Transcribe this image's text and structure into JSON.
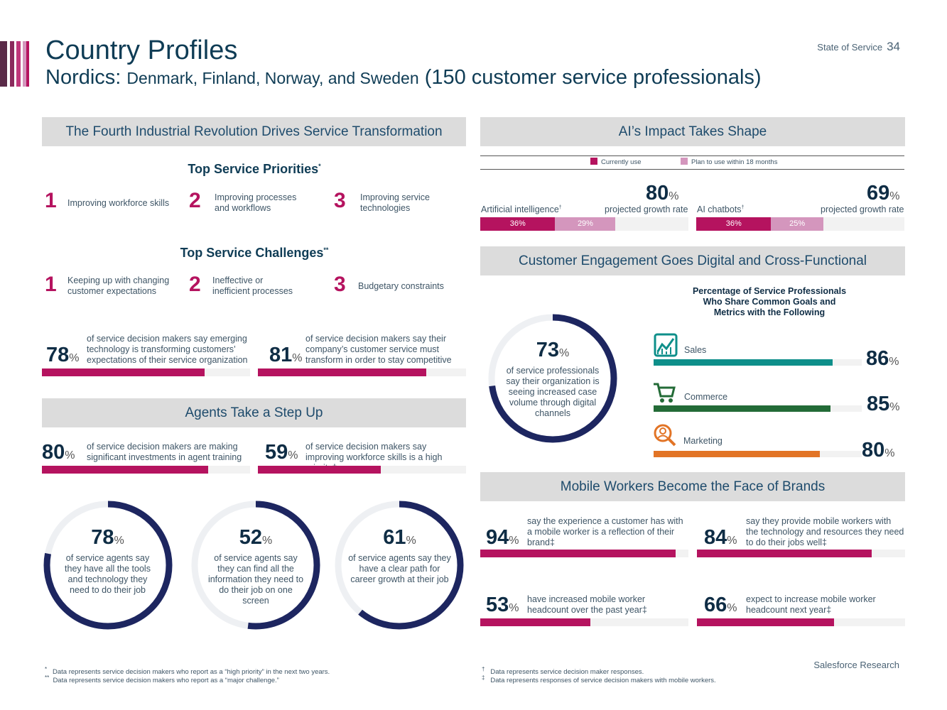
{
  "header": {
    "title": "Country Profiles",
    "subtitle_region": "Nordics:",
    "subtitle_countries": "Denmark, Finland, Norway, and Sweden",
    "subtitle_count": "(150 customer service professionals)",
    "section_label": "State of Service",
    "page_number": "34"
  },
  "colors": {
    "magenta": "#b5135f",
    "pink": "#d496bd",
    "navy": "#1d2660",
    "teal": "#0e8f8a",
    "green": "#236b37",
    "orange": "#e27426"
  },
  "revolution": {
    "band": "The Fourth Industrial Revolution Drives Service Transformation",
    "priorities_heading": "Top Service Priorities",
    "priorities_mark": "*",
    "priorities": [
      {
        "rank": "1",
        "text": "Improving workforce skills"
      },
      {
        "rank": "2",
        "text": "Improving processes and workflows"
      },
      {
        "rank": "3",
        "text": "Improving service technologies"
      }
    ],
    "challenges_heading": "Top Service Challenges",
    "challenges_mark": "**",
    "challenges": [
      {
        "rank": "1",
        "text": "Keeping up with changing customer expectations"
      },
      {
        "rank": "2",
        "text": "Ineffective or inefficient processes"
      },
      {
        "rank": "3",
        "text": "Budgetary constraints"
      }
    ],
    "stats": [
      {
        "value": "78",
        "pct": "%",
        "fraction": 0.78,
        "text": "of service decision makers say emerging technology is transforming customers’ expectations of their service organization"
      },
      {
        "value": "81",
        "pct": "%",
        "fraction": 0.81,
        "text": "of service decision makers say their company’s customer service must transform in order to stay competitive"
      }
    ]
  },
  "agents": {
    "band": "Agents Take a Step Up",
    "stats": [
      {
        "value": "80",
        "pct": "%",
        "fraction": 0.8,
        "text": "of service decision makers are making significant investments in agent training"
      },
      {
        "value": "59",
        "pct": "%",
        "fraction": 0.59,
        "text": "of service decision makers say improving workforce skills is a high priority†"
      }
    ],
    "rings": [
      {
        "value": "78",
        "pct": "%",
        "fraction": 0.78,
        "text": "of service agents say they have all the tools and technology they need to do their job"
      },
      {
        "value": "52",
        "pct": "%",
        "fraction": 0.52,
        "text": "of service agents say they can find all the information they need to do their job on one screen"
      },
      {
        "value": "61",
        "pct": "%",
        "fraction": 0.61,
        "text": "of service agents say they have a clear path for career growth at their job"
      }
    ]
  },
  "ai": {
    "band": "AI’s Impact Takes Shape",
    "legend_current": "Currently use",
    "legend_plan": "Plan to use within 18 months",
    "items": [
      {
        "label": "Artificial intelligence",
        "mark": "†",
        "growth": "80",
        "pct": "%",
        "growth_label": "projected growth rate",
        "current": 36,
        "plan": 29,
        "current_label": "36%",
        "plan_label": "29%"
      },
      {
        "label": "AI chatbots",
        "mark": "†",
        "growth": "69",
        "pct": "%",
        "growth_label": "projected growth rate",
        "current": 36,
        "plan": 25,
        "current_label": "36%",
        "plan_label": "25%"
      }
    ]
  },
  "engagement": {
    "band": "Customer Engagement Goes Digital and Cross-Functional",
    "ring": {
      "value": "73",
      "pct": "%",
      "fraction": 0.73,
      "text": "of service professionals say their organization is seeing increased case volume through digital channels"
    },
    "goals_title": "Percentage of Service Professionals Who Share Common Goals and Metrics with the Following",
    "goals": [
      {
        "label": "Sales",
        "value": "86",
        "pct": "%",
        "fraction": 0.86,
        "icon": "chart-icon"
      },
      {
        "label": "Commerce",
        "value": "85",
        "pct": "%",
        "fraction": 0.85,
        "icon": "cart-icon"
      },
      {
        "label": "Marketing",
        "value": "80",
        "pct": "%",
        "fraction": 0.8,
        "icon": "magnifier-icon"
      }
    ]
  },
  "mobile": {
    "band": "Mobile Workers Become the Face of Brands",
    "stats": [
      {
        "value": "94",
        "pct": "%",
        "fraction": 0.94,
        "text": "say the experience a customer has with a mobile worker is a reflection of their brand‡"
      },
      {
        "value": "84",
        "pct": "%",
        "fraction": 0.84,
        "text": "say they provide mobile workers with the technology and resources they need to do their jobs well‡"
      },
      {
        "value": "53",
        "pct": "%",
        "fraction": 0.53,
        "text": "have increased mobile worker headcount over the past year‡"
      },
      {
        "value": "66",
        "pct": "%",
        "fraction": 0.66,
        "text": "expect to increase mobile worker headcount next year‡"
      }
    ]
  },
  "footnotes_left": [
    {
      "mark": "*",
      "text": "Data represents service decision makers who report as a “high priority” in the next two years."
    },
    {
      "mark": "**",
      "text": "Data represents service decision makers who report as a “major challenge.”"
    }
  ],
  "footnotes_right": [
    {
      "mark": "†",
      "text": "Data represents service decision maker responses."
    },
    {
      "mark": "‡",
      "text": "Data represents responses of service decision makers with mobile workers."
    }
  ],
  "brand": "Salesforce Research"
}
